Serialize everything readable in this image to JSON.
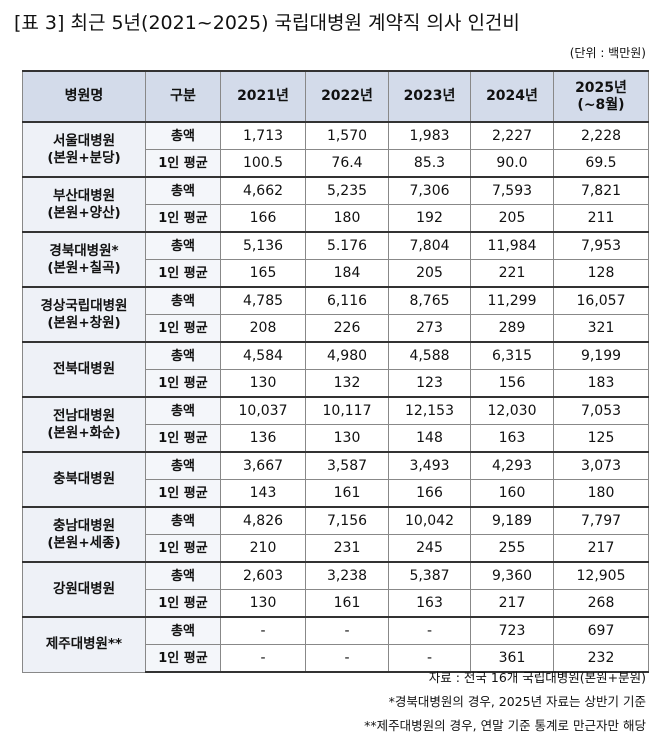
{
  "title": "[표 3] 최근 5년(2021~2025) 국립대병원 계약직 의사 인건비",
  "unit": "(단위 : 백만원)",
  "table": {
    "header": [
      [
        "병원명"
      ],
      [
        "구분"
      ],
      [
        "2021년"
      ],
      [
        "2022년"
      ],
      [
        "2023년"
      ],
      [
        "2024년"
      ],
      [
        "2025년",
        "(~8월)"
      ]
    ],
    "hospitals": [
      {
        "name": [
          "서울대병원",
          "(본원+분당)"
        ],
        "rows": [
          {
            "label": "총액",
            "values": [
              "1,713",
              "1,570",
              "1,983",
              "2,227",
              "2,228"
            ]
          },
          {
            "label": "1인 평균",
            "values": [
              "100.5",
              "76.4",
              "85.3",
              "90.0",
              "69.5"
            ]
          }
        ]
      },
      {
        "name": [
          "부산대병원",
          "(본원+양산)"
        ],
        "rows": [
          {
            "label": "총액",
            "values": [
              "4,662",
              "5,235",
              "7,306",
              "7,593",
              "7,821"
            ]
          },
          {
            "label": "1인 평균",
            "values": [
              "166",
              "180",
              "192",
              "205",
              "211"
            ]
          }
        ]
      },
      {
        "name": [
          "경북대병원*",
          "(본원+칠곡)"
        ],
        "rows": [
          {
            "label": "총액",
            "values": [
              "5,136",
              "5.176",
              "7,804",
              "11,984",
              "7,953"
            ]
          },
          {
            "label": "1인 평균",
            "values": [
              "165",
              "184",
              "205",
              "221",
              "128"
            ]
          }
        ]
      },
      {
        "name": [
          "경상국립대병원",
          "(본원+창원)"
        ],
        "rows": [
          {
            "label": "총액",
            "values": [
              "4,785",
              "6,116",
              "8,765",
              "11,299",
              "16,057"
            ]
          },
          {
            "label": "1인 평균",
            "values": [
              "208",
              "226",
              "273",
              "289",
              "321"
            ]
          }
        ]
      },
      {
        "name": [
          "전북대병원"
        ],
        "rows": [
          {
            "label": "총액",
            "values": [
              "4,584",
              "4,980",
              "4,588",
              "6,315",
              "9,199"
            ]
          },
          {
            "label": "1인 평균",
            "values": [
              "130",
              "132",
              "123",
              "156",
              "183"
            ]
          }
        ]
      },
      {
        "name": [
          "전남대병원",
          "(본원+화순)"
        ],
        "rows": [
          {
            "label": "총액",
            "values": [
              "10,037",
              "10,117",
              "12,153",
              "12,030",
              "7,053"
            ]
          },
          {
            "label": "1인 평균",
            "values": [
              "136",
              "130",
              "148",
              "163",
              "125"
            ]
          }
        ]
      },
      {
        "name": [
          "충북대병원"
        ],
        "rows": [
          {
            "label": "총액",
            "values": [
              "3,667",
              "3,587",
              "3,493",
              "4,293",
              "3,073"
            ]
          },
          {
            "label": "1인 평균",
            "values": [
              "143",
              "161",
              "166",
              "160",
              "180"
            ]
          }
        ]
      },
      {
        "name": [
          "충남대병원",
          "(본원+세종)"
        ],
        "rows": [
          {
            "label": "총액",
            "values": [
              "4,826",
              "7,156",
              "10,042",
              "9,189",
              "7,797"
            ]
          },
          {
            "label": "1인 평균",
            "values": [
              "210",
              "231",
              "245",
              "255",
              "217"
            ]
          }
        ]
      },
      {
        "name": [
          "강원대병원"
        ],
        "rows": [
          {
            "label": "총액",
            "values": [
              "2,603",
              "3,238",
              "5,387",
              "9,360",
              "12,905"
            ]
          },
          {
            "label": "1인 평균",
            "values": [
              "130",
              "161",
              "163",
              "217",
              "268"
            ]
          }
        ]
      },
      {
        "name": [
          "제주대병원**"
        ],
        "rows": [
          {
            "label": "총액",
            "values": [
              "-",
              "-",
              "-",
              "723",
              "697"
            ]
          },
          {
            "label": "1인 평균",
            "values": [
              "-",
              "-",
              "-",
              "361",
              "232"
            ]
          }
        ]
      }
    ]
  },
  "notes": [
    "자료 : 전국 16개 국립대병원(본원+분원)",
    "*경북대병원의 경우, 2025년 자료는 상반기 기준",
    "**제주대병원의 경우, 연말 기준 통계로 만근자만 해당"
  ]
}
